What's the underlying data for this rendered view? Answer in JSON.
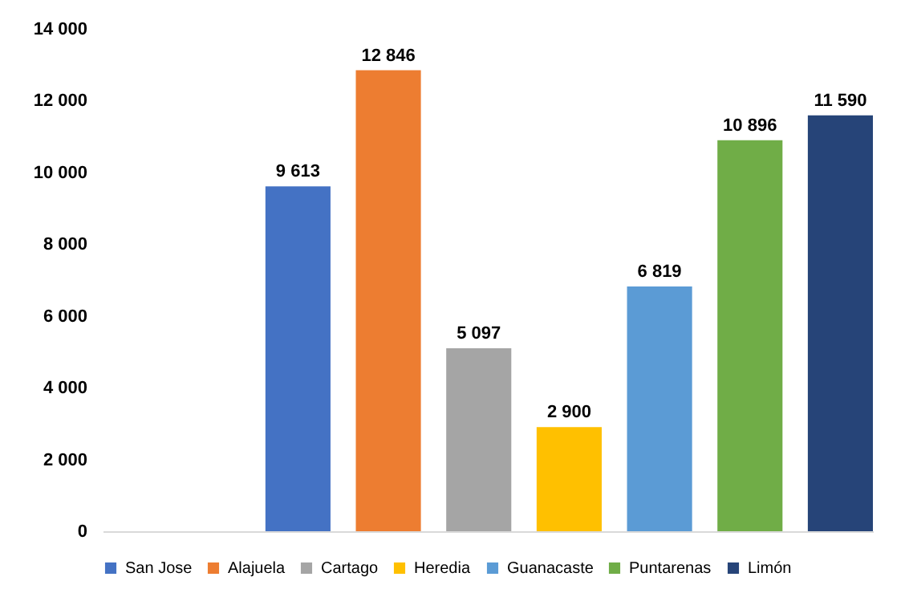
{
  "chart_data": {
    "type": "bar",
    "categories": [
      null
    ],
    "series": [
      {
        "name": "San Jose",
        "color": "#4472c4",
        "values": [
          9613
        ],
        "value_labels": [
          "9 613"
        ]
      },
      {
        "name": "Alajuela",
        "color": "#ed7d31",
        "values": [
          12846
        ],
        "value_labels": [
          "12 846"
        ]
      },
      {
        "name": "Cartago",
        "color": "#a5a5a5",
        "values": [
          5097
        ],
        "value_labels": [
          "5 097"
        ]
      },
      {
        "name": "Heredia",
        "color": "#ffc000",
        "values": [
          2900
        ],
        "value_labels": [
          "2 900"
        ]
      },
      {
        "name": "Guanacaste",
        "color": "#5b9bd5",
        "values": [
          6819
        ],
        "value_labels": [
          "6 819"
        ]
      },
      {
        "name": "Puntarenas",
        "color": "#70ad47",
        "values": [
          10896
        ],
        "value_labels": [
          "10 896"
        ]
      },
      {
        "name": "Limón",
        "color": "#264478",
        "values": [
          11590
        ],
        "value_labels": [
          "11 590"
        ]
      }
    ],
    "ylim": [
      0,
      14000
    ],
    "yticks": [
      {
        "value": 0,
        "label": "0"
      },
      {
        "value": 2000,
        "label": "2 000"
      },
      {
        "value": 4000,
        "label": "4 000"
      },
      {
        "value": 6000,
        "label": "6 000"
      },
      {
        "value": 8000,
        "label": "8 000"
      },
      {
        "value": 10000,
        "label": "10 000"
      },
      {
        "value": 12000,
        "label": "12 000"
      },
      {
        "value": 14000,
        "label": "14 000"
      }
    ],
    "grid": false,
    "legend": "bottom"
  }
}
